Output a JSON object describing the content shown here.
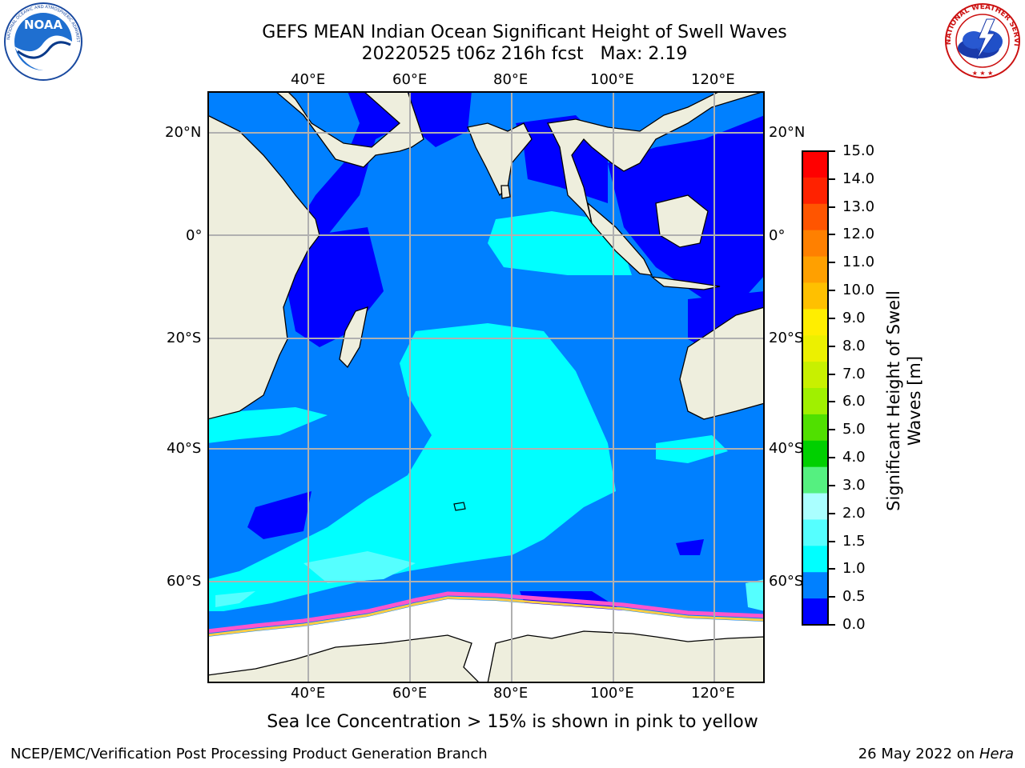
{
  "header": {
    "title_line1": "GEFS MEAN Indian Ocean Significant Height of Swell Waves",
    "title_line2": "20220525 t06z 216h fcst   Max: 2.19"
  },
  "logos": {
    "noaa_text": "NOAA",
    "noaa_ring": "NATIONAL OCEANIC AND ATMOSPHERIC ADMINISTRATION · U.S. DEPARTMENT OF COMMERCE",
    "nws_ring": "NATIONAL WEATHER SERVICE"
  },
  "map": {
    "lon_labels": [
      "40°E",
      "60°E",
      "80°E",
      "100°E",
      "120°E"
    ],
    "lat_labels": [
      "20°N",
      "0°",
      "20°S",
      "40°S",
      "60°S"
    ],
    "colors": {
      "land": "#eeeedd",
      "ice": "#ffffff",
      "grid": "#b0b0b0",
      "frame": "#000000"
    }
  },
  "colorbar": {
    "label_line1": "Significant Height of Swell",
    "label_line2": "Waves [m]",
    "ticks": [
      "15.0",
      "14.0",
      "13.0",
      "12.0",
      "11.0",
      "10.0",
      "9.0",
      "8.0",
      "7.0",
      "6.0",
      "5.0",
      "4.0",
      "3.0",
      "2.0",
      "1.5",
      "1.0",
      "0.5",
      "0.0"
    ],
    "colors_top_to_bottom": [
      "#ff0000",
      "#ff2200",
      "#ff5500",
      "#ff8000",
      "#ffa000",
      "#ffc000",
      "#ffee00",
      "#ecf000",
      "#c8f000",
      "#a0f000",
      "#50e000",
      "#00d000",
      "#55f080",
      "#aaffff",
      "#55ffff",
      "#00ffff",
      "#0080ff",
      "#0000ff"
    ]
  },
  "notes": {
    "sea_ice": "Sea Ice Concentration > 15% is shown in pink to yellow"
  },
  "footer": {
    "left": "NCEP/EMC/Verification Post Processing Product Generation Branch",
    "right_date": "26 May 2022 on ",
    "right_machine": "Hera"
  }
}
